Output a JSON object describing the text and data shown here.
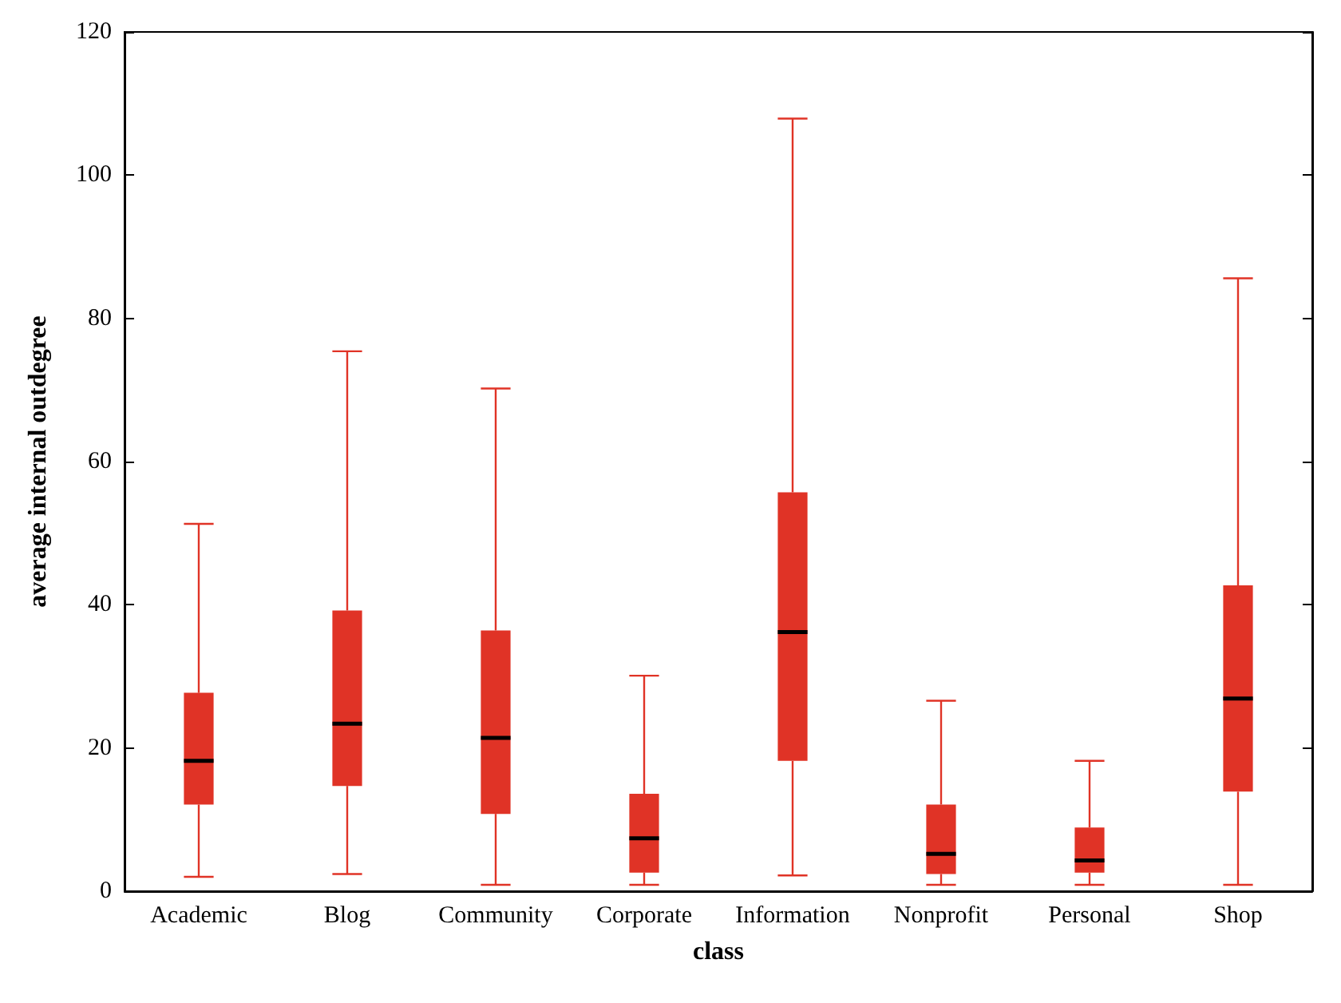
{
  "chart_data": {
    "type": "box",
    "xlabel": "class",
    "ylabel": "average internal outdegree",
    "categories": [
      "Academic",
      "Blog",
      "Community",
      "Corporate",
      "Information",
      "Nonprofit",
      "Personal",
      "Shop"
    ],
    "series": [
      {
        "color": "#e03326",
        "boxes": [
          {
            "low": 2.0,
            "q1": 12.1,
            "median": 18.2,
            "q3": 27.7,
            "high": 51.3
          },
          {
            "low": 2.4,
            "q1": 14.7,
            "median": 23.4,
            "q3": 39.2,
            "high": 75.4
          },
          {
            "low": 0.9,
            "q1": 10.8,
            "median": 21.4,
            "q3": 36.4,
            "high": 70.2
          },
          {
            "low": 0.9,
            "q1": 2.6,
            "median": 7.4,
            "q3": 13.6,
            "high": 30.1
          },
          {
            "low": 2.2,
            "q1": 18.2,
            "median": 36.2,
            "q3": 55.7,
            "high": 107.9
          },
          {
            "low": 0.9,
            "q1": 2.4,
            "median": 5.2,
            "q3": 12.1,
            "high": 26.6
          },
          {
            "low": 0.9,
            "q1": 2.6,
            "median": 4.3,
            "q3": 8.9,
            "high": 18.2
          },
          {
            "low": 0.9,
            "q1": 13.9,
            "median": 26.9,
            "q3": 42.7,
            "high": 85.6
          }
        ]
      }
    ],
    "ylim": [
      0,
      120
    ],
    "yticks": [
      0,
      20,
      40,
      60,
      80,
      100,
      120
    ],
    "grid": false
  }
}
